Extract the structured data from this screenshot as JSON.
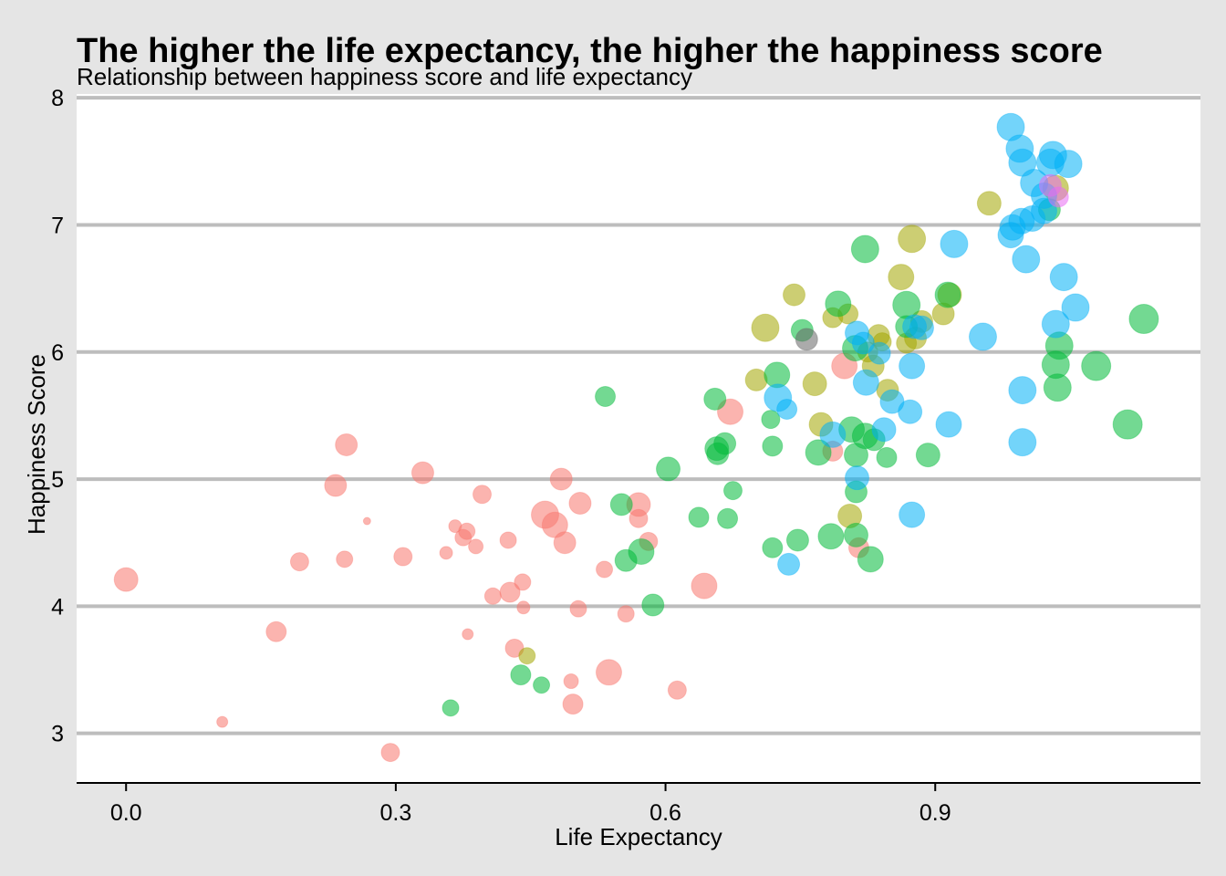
{
  "chart_data": {
    "type": "scatter",
    "title": "The higher the life expectancy, the higher the happiness score",
    "subtitle": "Relationship between happiness score and life expectancy",
    "xlabel": "Life Expectancy",
    "ylabel": "Happiness Score",
    "xlim": [
      -0.055,
      1.195
    ],
    "ylim": [
      2.61,
      8.03
    ],
    "x_ticks": [
      0.0,
      0.3,
      0.6,
      0.9
    ],
    "x_tick_labels": [
      "0.0",
      "0.3",
      "0.6",
      "0.9"
    ],
    "y_ticks": [
      3,
      4,
      5,
      6,
      7,
      8
    ],
    "y_tick_labels": [
      "3",
      "4",
      "5",
      "6",
      "7",
      "8"
    ],
    "grid": "horizontal",
    "legend": "none",
    "point_opacity": 0.55,
    "groups": [
      {
        "color": "#F8766D",
        "points": [
          [
            0.0,
            4.21,
            13
          ],
          [
            0.107,
            3.09,
            6
          ],
          [
            0.167,
            3.8,
            11
          ],
          [
            0.193,
            4.35,
            10
          ],
          [
            0.233,
            4.95,
            12
          ],
          [
            0.243,
            4.37,
            9
          ],
          [
            0.245,
            5.27,
            12
          ],
          [
            0.268,
            4.67,
            4
          ],
          [
            0.294,
            2.85,
            10
          ],
          [
            0.308,
            4.39,
            10
          ],
          [
            0.33,
            5.05,
            12
          ],
          [
            0.356,
            4.42,
            7
          ],
          [
            0.366,
            4.63,
            7
          ],
          [
            0.375,
            4.54,
            9
          ],
          [
            0.379,
            4.59,
            9
          ],
          [
            0.38,
            3.78,
            6
          ],
          [
            0.389,
            4.47,
            8
          ],
          [
            0.396,
            4.88,
            10
          ],
          [
            0.408,
            4.08,
            9
          ],
          [
            0.425,
            4.52,
            9
          ],
          [
            0.427,
            4.11,
            11
          ],
          [
            0.432,
            3.67,
            10
          ],
          [
            0.441,
            4.19,
            9
          ],
          [
            0.442,
            3.99,
            7
          ],
          [
            0.466,
            4.72,
            15
          ],
          [
            0.477,
            4.64,
            14
          ],
          [
            0.484,
            5.0,
            12
          ],
          [
            0.488,
            4.5,
            12
          ],
          [
            0.495,
            3.41,
            8
          ],
          [
            0.497,
            3.23,
            11
          ],
          [
            0.503,
            3.98,
            9
          ],
          [
            0.505,
            4.81,
            12
          ],
          [
            0.532,
            4.29,
            9
          ],
          [
            0.537,
            3.48,
            14
          ],
          [
            0.556,
            3.94,
            9
          ],
          [
            0.57,
            4.8,
            13
          ],
          [
            0.57,
            4.69,
            10
          ],
          [
            0.581,
            4.51,
            10
          ],
          [
            0.613,
            3.34,
            10
          ],
          [
            0.643,
            4.16,
            14
          ],
          [
            0.672,
            5.53,
            14
          ],
          [
            0.799,
            5.89,
            14
          ],
          [
            0.786,
            5.22,
            11
          ],
          [
            0.815,
            4.46,
            11
          ]
        ]
      },
      {
        "color": "#A3A500",
        "points": [
          [
            0.446,
            3.61,
            9
          ],
          [
            0.711,
            6.19,
            15
          ],
          [
            0.701,
            5.78,
            12
          ],
          [
            0.743,
            6.45,
            12
          ],
          [
            0.766,
            5.75,
            13
          ],
          [
            0.773,
            5.43,
            13
          ],
          [
            0.786,
            6.27,
            11
          ],
          [
            0.803,
            6.3,
            11
          ],
          [
            0.805,
            4.71,
            13
          ],
          [
            0.825,
            6.0,
            11
          ],
          [
            0.831,
            5.89,
            12
          ],
          [
            0.837,
            6.13,
            12
          ],
          [
            0.841,
            6.08,
            10
          ],
          [
            0.847,
            5.7,
            12
          ],
          [
            0.862,
            6.59,
            14
          ],
          [
            0.868,
            6.07,
            11
          ],
          [
            0.874,
            6.89,
            15
          ],
          [
            0.878,
            6.11,
            12
          ],
          [
            0.885,
            6.24,
            12
          ],
          [
            0.909,
            6.3,
            12
          ],
          [
            0.916,
            6.45,
            13
          ],
          [
            0.96,
            7.17,
            13
          ],
          [
            1.034,
            7.29,
            14
          ]
        ]
      },
      {
        "color": "#00BA38",
        "points": [
          [
            0.361,
            3.2,
            9
          ],
          [
            0.439,
            3.46,
            11
          ],
          [
            0.462,
            3.38,
            9
          ],
          [
            0.533,
            5.65,
            11
          ],
          [
            0.551,
            4.8,
            12
          ],
          [
            0.556,
            4.36,
            12
          ],
          [
            0.573,
            4.43,
            14
          ],
          [
            0.586,
            4.01,
            12
          ],
          [
            0.603,
            5.08,
            13
          ],
          [
            0.637,
            4.7,
            11
          ],
          [
            0.655,
            5.63,
            12
          ],
          [
            0.657,
            5.24,
            13
          ],
          [
            0.658,
            5.2,
            12
          ],
          [
            0.666,
            5.28,
            12
          ],
          [
            0.669,
            4.69,
            11
          ],
          [
            0.675,
            4.91,
            10
          ],
          [
            0.717,
            5.47,
            10
          ],
          [
            0.719,
            4.46,
            11
          ],
          [
            0.719,
            5.26,
            11
          ],
          [
            0.724,
            5.82,
            14
          ],
          [
            0.747,
            4.52,
            12
          ],
          [
            0.752,
            6.17,
            12
          ],
          [
            0.77,
            5.21,
            14
          ],
          [
            0.784,
            4.55,
            14
          ],
          [
            0.792,
            6.38,
            14
          ],
          [
            0.811,
            6.03,
            14
          ],
          [
            0.807,
            5.39,
            14
          ],
          [
            0.812,
            5.19,
            13
          ],
          [
            0.812,
            4.9,
            12
          ],
          [
            0.812,
            4.56,
            13
          ],
          [
            0.822,
            6.81,
            15
          ],
          [
            0.822,
            5.34,
            14
          ],
          [
            0.828,
            4.37,
            14
          ],
          [
            0.832,
            5.31,
            12
          ],
          [
            0.846,
            5.17,
            11
          ],
          [
            0.868,
            6.37,
            15
          ],
          [
            0.868,
            6.2,
            12
          ],
          [
            0.892,
            5.19,
            13
          ],
          [
            0.914,
            6.45,
            14
          ],
          [
            1.027,
            7.12,
            12
          ],
          [
            1.034,
            5.9,
            15
          ],
          [
            1.036,
            5.72,
            15
          ],
          [
            1.038,
            6.05,
            15
          ],
          [
            1.079,
            5.89,
            16
          ],
          [
            1.114,
            5.43,
            16
          ],
          [
            1.132,
            6.26,
            16
          ]
        ]
      },
      {
        "color": "#00B0F6",
        "points": [
          [
            0.737,
            4.33,
            12
          ],
          [
            0.725,
            5.64,
            15
          ],
          [
            0.735,
            5.55,
            11
          ],
          [
            0.786,
            5.35,
            14
          ],
          [
            0.813,
            5.01,
            13
          ],
          [
            0.813,
            6.15,
            13
          ],
          [
            0.82,
            6.07,
            12
          ],
          [
            0.823,
            5.76,
            14
          ],
          [
            0.838,
            5.99,
            12
          ],
          [
            0.843,
            5.39,
            13
          ],
          [
            0.852,
            5.61,
            13
          ],
          [
            0.872,
            5.53,
            13
          ],
          [
            0.874,
            5.89,
            14
          ],
          [
            0.874,
            4.72,
            14
          ],
          [
            0.877,
            6.2,
            13
          ],
          [
            0.885,
            6.19,
            13
          ],
          [
            0.915,
            5.43,
            14
          ],
          [
            0.921,
            6.85,
            15
          ],
          [
            0.953,
            6.12,
            15
          ],
          [
            0.984,
            7.77,
            15
          ],
          [
            0.984,
            6.92,
            14
          ],
          [
            0.986,
            6.98,
            14
          ],
          [
            0.994,
            7.6,
            15
          ],
          [
            0.996,
            7.03,
            14
          ],
          [
            0.997,
            7.49,
            15
          ],
          [
            0.997,
            5.7,
            15
          ],
          [
            0.997,
            5.29,
            15
          ],
          [
            1.001,
            6.73,
            15
          ],
          [
            1.008,
            7.05,
            14
          ],
          [
            1.01,
            7.33,
            15
          ],
          [
            1.021,
            7.23,
            14
          ],
          [
            1.021,
            7.11,
            14
          ],
          [
            1.028,
            7.49,
            15
          ],
          [
            1.031,
            7.55,
            15
          ],
          [
            1.034,
            6.22,
            15
          ],
          [
            1.043,
            6.59,
            15
          ],
          [
            1.048,
            7.48,
            15
          ],
          [
            1.056,
            6.35,
            15
          ]
        ]
      },
      {
        "color": "#E76BF3",
        "points": [
          [
            1.028,
            7.31,
            12
          ],
          [
            1.037,
            7.22,
            11
          ]
        ]
      },
      {
        "color": "#666666",
        "points": [
          [
            0.757,
            6.1,
            12
          ]
        ]
      }
    ]
  }
}
